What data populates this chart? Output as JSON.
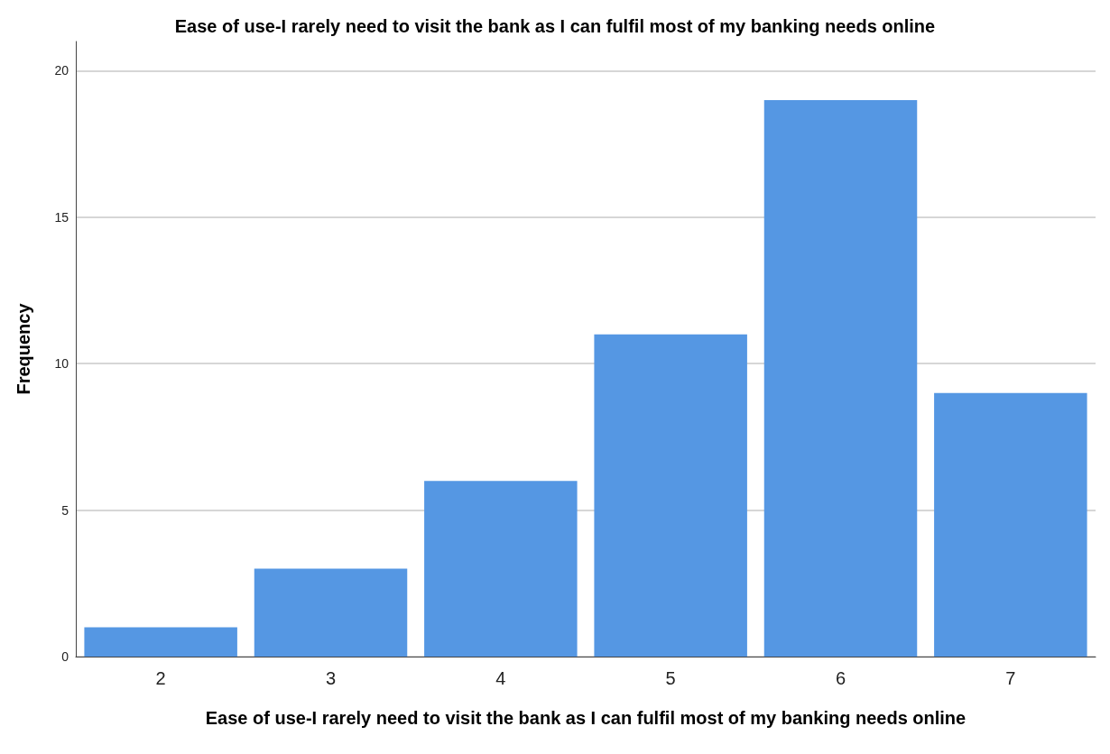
{
  "chart_data": {
    "type": "bar",
    "title": "Ease of use-I rarely need to visit the bank as I can fulfil most of my banking needs online",
    "xlabel": "Ease of use-I rarely need to visit the bank as I can fulfil most of my banking needs online",
    "ylabel": "Frequency",
    "categories": [
      "2",
      "3",
      "4",
      "5",
      "6",
      "7"
    ],
    "values": [
      1,
      3,
      6,
      11,
      19,
      9
    ],
    "color": "#5597e3",
    "ylim": [
      0,
      21
    ],
    "yticks": [
      0,
      5,
      10,
      15,
      20
    ],
    "grid": "y"
  }
}
